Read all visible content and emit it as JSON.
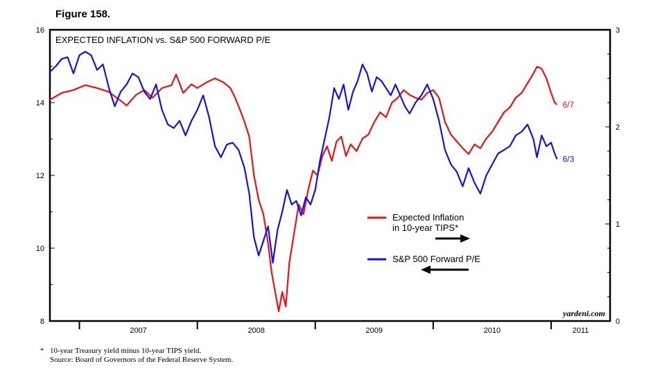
{
  "figure_label": "Figure 158.",
  "footnote": {
    "marker": "*",
    "line1": "10-year Treasury yield minus 10-year TIPS yield.",
    "line2": "Source: Board of Governors of the Federal Reserve System."
  },
  "watermark": "yardeni.com",
  "chart_data": {
    "type": "line",
    "title": "EXPECTED INFLATION vs. S&P 500 FORWARD P/E",
    "x_ticks": [
      "2007",
      "2008",
      "2009",
      "2010",
      "2011"
    ],
    "xlim": [
      2006.75,
      2011.5
    ],
    "left_axis": {
      "ylim": [
        8,
        16
      ],
      "ticks": [
        8,
        10,
        12,
        14,
        16
      ]
    },
    "right_axis": {
      "ylim": [
        0,
        3
      ],
      "ticks": [
        0,
        1,
        2,
        3
      ]
    },
    "grid": false,
    "legend_position": "center-right",
    "series": [
      {
        "name": "Expected Inflation in 10-year TIPS*",
        "legend_line1": "Expected Inflation",
        "legend_line2": "in 10-year TIPS*",
        "axis": "right",
        "arrow": "right",
        "color": "#ee1111",
        "end_label": "6/7",
        "points": [
          [
            2006.75,
            2.28
          ],
          [
            2006.85,
            2.35
          ],
          [
            2006.95,
            2.38
          ],
          [
            2007.05,
            2.43
          ],
          [
            2007.15,
            2.4
          ],
          [
            2007.25,
            2.36
          ],
          [
            2007.35,
            2.27
          ],
          [
            2007.4,
            2.22
          ],
          [
            2007.48,
            2.33
          ],
          [
            2007.55,
            2.38
          ],
          [
            2007.62,
            2.3
          ],
          [
            2007.7,
            2.4
          ],
          [
            2007.78,
            2.43
          ],
          [
            2007.82,
            2.54
          ],
          [
            2007.88,
            2.35
          ],
          [
            2007.95,
            2.44
          ],
          [
            2008.0,
            2.4
          ],
          [
            2008.08,
            2.46
          ],
          [
            2008.15,
            2.5
          ],
          [
            2008.22,
            2.46
          ],
          [
            2008.28,
            2.4
          ],
          [
            2008.32,
            2.3
          ],
          [
            2008.36,
            2.18
          ],
          [
            2008.4,
            2.05
          ],
          [
            2008.44,
            1.9
          ],
          [
            2008.48,
            1.5
          ],
          [
            2008.52,
            1.25
          ],
          [
            2008.56,
            1.1
          ],
          [
            2008.6,
            0.8
          ],
          [
            2008.63,
            0.5
          ],
          [
            2008.66,
            0.3
          ],
          [
            2008.69,
            0.1
          ],
          [
            2008.72,
            0.3
          ],
          [
            2008.75,
            0.15
          ],
          [
            2008.78,
            0.6
          ],
          [
            2008.82,
            0.9
          ],
          [
            2008.86,
            1.2
          ],
          [
            2008.9,
            1.1
          ],
          [
            2008.94,
            1.35
          ],
          [
            2008.98,
            1.55
          ],
          [
            2009.02,
            1.5
          ],
          [
            2009.06,
            1.7
          ],
          [
            2009.1,
            1.8
          ],
          [
            2009.14,
            1.65
          ],
          [
            2009.18,
            1.85
          ],
          [
            2009.22,
            1.9
          ],
          [
            2009.26,
            1.7
          ],
          [
            2009.3,
            1.82
          ],
          [
            2009.35,
            1.75
          ],
          [
            2009.4,
            1.88
          ],
          [
            2009.45,
            1.92
          ],
          [
            2009.5,
            2.05
          ],
          [
            2009.55,
            2.15
          ],
          [
            2009.6,
            2.1
          ],
          [
            2009.65,
            2.25
          ],
          [
            2009.7,
            2.3
          ],
          [
            2009.75,
            2.38
          ],
          [
            2009.8,
            2.33
          ],
          [
            2009.85,
            2.3
          ],
          [
            2009.9,
            2.28
          ],
          [
            2009.95,
            2.35
          ],
          [
            2010.0,
            2.38
          ],
          [
            2010.05,
            2.3
          ],
          [
            2010.1,
            2.05
          ],
          [
            2010.15,
            1.92
          ],
          [
            2010.2,
            1.85
          ],
          [
            2010.25,
            1.78
          ],
          [
            2010.3,
            1.72
          ],
          [
            2010.35,
            1.82
          ],
          [
            2010.4,
            1.78
          ],
          [
            2010.45,
            1.88
          ],
          [
            2010.5,
            1.95
          ],
          [
            2010.55,
            2.05
          ],
          [
            2010.6,
            2.15
          ],
          [
            2010.65,
            2.2
          ],
          [
            2010.7,
            2.3
          ],
          [
            2010.75,
            2.35
          ],
          [
            2010.8,
            2.45
          ],
          [
            2010.85,
            2.55
          ],
          [
            2010.88,
            2.62
          ],
          [
            2010.92,
            2.6
          ],
          [
            2010.96,
            2.5
          ],
          [
            2011.0,
            2.35
          ],
          [
            2011.03,
            2.25
          ],
          [
            2011.05,
            2.23
          ]
        ]
      },
      {
        "name": "S&P 500 Forward P/E",
        "legend_line1": "S&P 500 Forward P/E",
        "axis": "left",
        "arrow": "left",
        "color": "#1111ee",
        "end_label": "6/3",
        "points": [
          [
            2006.75,
            14.85
          ],
          [
            2006.8,
            15.0
          ],
          [
            2006.85,
            15.2
          ],
          [
            2006.9,
            15.25
          ],
          [
            2006.95,
            14.8
          ],
          [
            2007.0,
            15.3
          ],
          [
            2007.05,
            15.4
          ],
          [
            2007.1,
            15.3
          ],
          [
            2007.15,
            14.9
          ],
          [
            2007.2,
            15.05
          ],
          [
            2007.25,
            14.4
          ],
          [
            2007.3,
            13.9
          ],
          [
            2007.35,
            14.3
          ],
          [
            2007.4,
            14.5
          ],
          [
            2007.45,
            14.8
          ],
          [
            2007.5,
            14.7
          ],
          [
            2007.55,
            14.3
          ],
          [
            2007.6,
            14.1
          ],
          [
            2007.65,
            14.5
          ],
          [
            2007.7,
            13.8
          ],
          [
            2007.75,
            13.4
          ],
          [
            2007.8,
            13.3
          ],
          [
            2007.85,
            13.5
          ],
          [
            2007.9,
            13.1
          ],
          [
            2007.95,
            13.5
          ],
          [
            2008.0,
            13.8
          ],
          [
            2008.05,
            14.2
          ],
          [
            2008.1,
            13.6
          ],
          [
            2008.15,
            12.8
          ],
          [
            2008.2,
            12.5
          ],
          [
            2008.25,
            12.85
          ],
          [
            2008.3,
            12.9
          ],
          [
            2008.35,
            12.7
          ],
          [
            2008.4,
            12.2
          ],
          [
            2008.44,
            11.5
          ],
          [
            2008.48,
            10.3
          ],
          [
            2008.52,
            9.8
          ],
          [
            2008.56,
            10.2
          ],
          [
            2008.6,
            10.6
          ],
          [
            2008.64,
            9.6
          ],
          [
            2008.68,
            10.5
          ],
          [
            2008.72,
            11.0
          ],
          [
            2008.76,
            11.6
          ],
          [
            2008.8,
            11.2
          ],
          [
            2008.84,
            11.3
          ],
          [
            2008.88,
            10.9
          ],
          [
            2008.92,
            11.4
          ],
          [
            2008.96,
            11.2
          ],
          [
            2009.0,
            11.6
          ],
          [
            2009.04,
            12.4
          ],
          [
            2009.08,
            13.0
          ],
          [
            2009.12,
            13.6
          ],
          [
            2009.16,
            14.4
          ],
          [
            2009.2,
            14.1
          ],
          [
            2009.24,
            14.5
          ],
          [
            2009.28,
            13.8
          ],
          [
            2009.32,
            14.3
          ],
          [
            2009.36,
            14.6
          ],
          [
            2009.4,
            15.05
          ],
          [
            2009.44,
            14.8
          ],
          [
            2009.48,
            14.3
          ],
          [
            2009.52,
            14.7
          ],
          [
            2009.56,
            14.6
          ],
          [
            2009.6,
            14.4
          ],
          [
            2009.64,
            14.2
          ],
          [
            2009.68,
            14.5
          ],
          [
            2009.72,
            14.2
          ],
          [
            2009.76,
            13.9
          ],
          [
            2009.8,
            13.7
          ],
          [
            2009.85,
            14.0
          ],
          [
            2009.9,
            14.2
          ],
          [
            2009.95,
            14.5
          ],
          [
            2010.0,
            14.1
          ],
          [
            2010.05,
            13.5
          ],
          [
            2010.1,
            12.7
          ],
          [
            2010.15,
            12.3
          ],
          [
            2010.2,
            12.1
          ],
          [
            2010.25,
            11.7
          ],
          [
            2010.3,
            12.2
          ],
          [
            2010.35,
            11.8
          ],
          [
            2010.4,
            11.5
          ],
          [
            2010.45,
            12.0
          ],
          [
            2010.5,
            12.3
          ],
          [
            2010.55,
            12.6
          ],
          [
            2010.6,
            12.7
          ],
          [
            2010.65,
            12.8
          ],
          [
            2010.7,
            13.1
          ],
          [
            2010.75,
            13.2
          ],
          [
            2010.8,
            13.4
          ],
          [
            2010.85,
            13.0
          ],
          [
            2010.88,
            12.5
          ],
          [
            2010.92,
            13.1
          ],
          [
            2010.96,
            12.8
          ],
          [
            2011.0,
            12.9
          ],
          [
            2011.03,
            12.6
          ],
          [
            2011.05,
            12.45
          ]
        ]
      }
    ]
  }
}
